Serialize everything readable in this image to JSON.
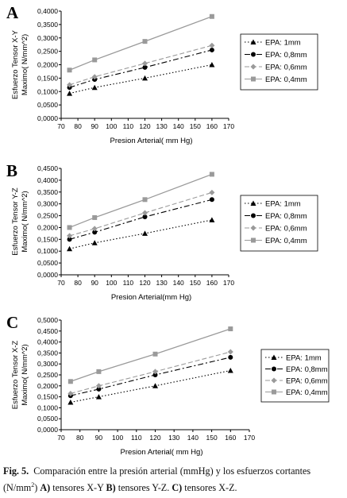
{
  "chart_data": [
    {
      "type": "line",
      "panel_label": "A",
      "ylabel": "Esfuerzo Tensor X-Y\nMaximo( N/mm^2)",
      "xlabel": "Presion Arterial( mm Hg)",
      "xticks": [
        70,
        80,
        90,
        100,
        110,
        120,
        130,
        140,
        150,
        160,
        170
      ],
      "xlim": [
        70,
        170
      ],
      "yticks": [
        "0,0000",
        "0,0500",
        "0,1000",
        "0,1500",
        "0,2000",
        "0,2500",
        "0,3000",
        "0,3500",
        "0,4000"
      ],
      "ylim": [
        0,
        0.4
      ],
      "x": [
        75,
        90,
        120,
        160
      ],
      "series": [
        {
          "name": "EPA: 1mm",
          "values": [
            0.093,
            0.115,
            0.15,
            0.2
          ]
        },
        {
          "name": "EPA: 0,8mm",
          "values": [
            0.115,
            0.145,
            0.19,
            0.255
          ]
        },
        {
          "name": "EPA: 0,6mm",
          "values": [
            0.125,
            0.155,
            0.205,
            0.272
          ]
        },
        {
          "name": "EPA: 0,4mm",
          "values": [
            0.18,
            0.218,
            0.287,
            0.38
          ]
        }
      ]
    },
    {
      "type": "line",
      "panel_label": "B",
      "ylabel": "Esfuerzo Tensor Y-Z\nMaximo( N/mm^2)",
      "xlabel": "Presion Arterial(mm Hg)",
      "xticks": [
        70,
        80,
        90,
        100,
        110,
        120,
        130,
        140,
        150,
        160,
        170
      ],
      "xlim": [
        70,
        170
      ],
      "yticks": [
        "0,0000",
        "0,0500",
        "0,1000",
        "0,1500",
        "0,2000",
        "0,2500",
        "0,3000",
        "0,3500",
        "0,4000",
        "0,4500"
      ],
      "ylim": [
        0,
        0.45
      ],
      "x": [
        75,
        90,
        120,
        160
      ],
      "series": [
        {
          "name": "EPA: 1mm",
          "values": [
            0.11,
            0.135,
            0.175,
            0.232
          ]
        },
        {
          "name": "EPA: 0,8mm",
          "values": [
            0.15,
            0.18,
            0.245,
            0.318
          ]
        },
        {
          "name": "EPA: 0,6mm",
          "values": [
            0.165,
            0.195,
            0.262,
            0.348
          ]
        },
        {
          "name": "EPA: 0,4mm",
          "values": [
            0.2,
            0.242,
            0.318,
            0.425
          ]
        }
      ]
    },
    {
      "type": "line",
      "panel_label": "C",
      "ylabel": "Esfuerzo Tensor X-Z\nMaximo( N/mm^2)",
      "xlabel": "Presion Arterial( mm Hg)",
      "xticks": [
        70,
        80,
        90,
        100,
        110,
        120,
        130,
        140,
        150,
        160,
        170
      ],
      "xlim": [
        70,
        170
      ],
      "yticks": [
        "0,0000",
        "0,0500",
        "0,1000",
        "0,1500",
        "0,2000",
        "0,2500",
        "0,3000",
        "0,3500",
        "0,4000",
        "0,4500",
        "0,5000"
      ],
      "ylim": [
        0,
        0.5
      ],
      "x": [
        75,
        90,
        120,
        160
      ],
      "series": [
        {
          "name": "EPA: 1mm",
          "values": [
            0.125,
            0.15,
            0.2,
            0.27
          ]
        },
        {
          "name": "EPA: 0,8mm",
          "values": [
            0.155,
            0.185,
            0.25,
            0.33
          ]
        },
        {
          "name": "EPA: 0,6mm",
          "values": [
            0.165,
            0.2,
            0.265,
            0.355
          ]
        },
        {
          "name": "EPA: 0,4mm",
          "values": [
            0.22,
            0.265,
            0.345,
            0.46
          ]
        }
      ]
    }
  ],
  "style": {
    "series_colors": [
      "#000000",
      "#000000",
      "#9a9a9a",
      "#9a9a9a"
    ],
    "series_markers": [
      "triangle",
      "circle",
      "diamond",
      "square"
    ],
    "series_dash": [
      "dotted",
      "dash-dot",
      "dashed",
      "solid"
    ]
  },
  "caption": {
    "label": "Fig. 5.",
    "text_1": "Comparación entre la presión arterial (mmHg) y los esfuerzos cortantes (N/mm",
    "sup": "2",
    "text_2": ") ",
    "a": "A)",
    "a_text": " tensores X-Y ",
    "b": "B)",
    "b_text": " tensores Y-Z. ",
    "c": "C)",
    "c_text": " tensores X-Z."
  }
}
